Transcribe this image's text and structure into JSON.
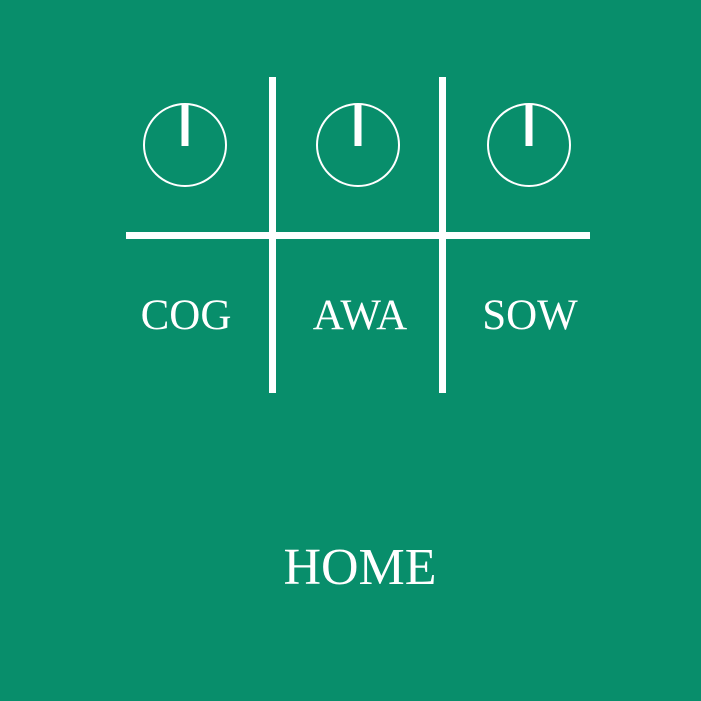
{
  "theme": {
    "background": "#088e6b",
    "foreground": "#ffffff"
  },
  "channels": [
    {
      "label": "COG",
      "icon": "power-icon"
    },
    {
      "label": "AWA",
      "icon": "power-icon"
    },
    {
      "label": "SOW",
      "icon": "power-icon"
    }
  ],
  "footer": {
    "home_label": "HOME"
  }
}
